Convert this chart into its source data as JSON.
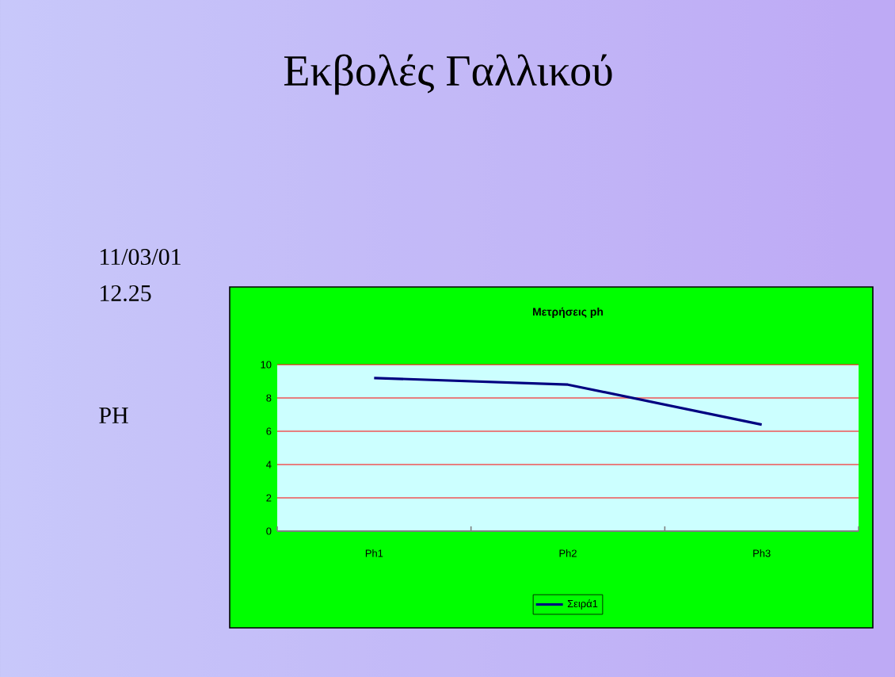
{
  "chart_data": {
    "type": "line",
    "title": "Μετρήσεις ph",
    "annotations": [
      "Εκβολές Γαλλικού",
      "11/03/01",
      "12.25",
      "PH"
    ],
    "categories": [
      "Ph1",
      "Ph2",
      "Ph3"
    ],
    "series": [
      {
        "name": "Σειρά1",
        "color": "#000080",
        "values": [
          9.2,
          8.8,
          6.4
        ]
      }
    ],
    "ylim": [
      0,
      10
    ],
    "yticks": [
      0,
      2,
      4,
      6,
      8,
      10
    ],
    "grid": "y",
    "legend": "bottom",
    "marker": "none",
    "line_style": "solid"
  }
}
